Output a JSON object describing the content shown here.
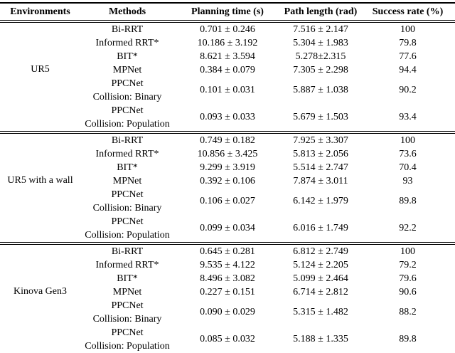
{
  "table": {
    "headers": [
      {
        "id": "environments",
        "label": "Environments"
      },
      {
        "id": "methods",
        "label": "Methods"
      },
      {
        "id": "planning_time",
        "label": "Planning time (s)"
      },
      {
        "id": "path_length",
        "label": "Path length (rad)"
      },
      {
        "id": "success_rate",
        "label": "Success rate (%)"
      }
    ],
    "sections": [
      {
        "environment": "UR5",
        "rows": [
          {
            "method": [
              "Bi-RRT"
            ],
            "planning_time": "0.701 ± 0.246",
            "path_length": "7.516 ± 2.147",
            "success_rate": "100"
          },
          {
            "method": [
              "Informed RRT*"
            ],
            "planning_time": "10.186 ± 3.192",
            "path_length": "5.304 ± 1.983",
            "success_rate": "79.8"
          },
          {
            "method": [
              "BIT*"
            ],
            "planning_time": "8.621 ± 3.594",
            "path_length": "5.278±2.315",
            "success_rate": "77.6"
          },
          {
            "method": [
              "MPNet"
            ],
            "planning_time": "0.384 ± 0.079",
            "path_length": "7.305 ± 2.298",
            "success_rate": "94.4"
          },
          {
            "method": [
              "PPCNet",
              "Collision: Binary"
            ],
            "planning_time": "0.101 ± 0.031",
            "path_length": "5.887 ± 1.038",
            "success_rate": "90.2"
          },
          {
            "method": [
              "PPCNet",
              "Collision: Population"
            ],
            "planning_time": "0.093 ± 0.033",
            "path_length": "5.679 ± 1.503",
            "success_rate": "93.4"
          }
        ]
      },
      {
        "environment": "UR5 with a wall",
        "rows": [
          {
            "method": [
              "Bi-RRT"
            ],
            "planning_time": "0.749 ± 0.182",
            "path_length": "7.925 ± 3.307",
            "success_rate": "100"
          },
          {
            "method": [
              "Informed RRT*"
            ],
            "planning_time": "10.856 ± 3.425",
            "path_length": "5.813 ± 2.056",
            "success_rate": "73.6"
          },
          {
            "method": [
              "BIT*"
            ],
            "planning_time": "9.299 ± 3.919",
            "path_length": "5.514 ± 2.747",
            "success_rate": "70.4"
          },
          {
            "method": [
              "MPNet"
            ],
            "planning_time": "0.392 ± 0.106",
            "path_length": "7.874 ± 3.011",
            "success_rate": "93"
          },
          {
            "method": [
              "PPCNet",
              "Collision: Binary"
            ],
            "planning_time": "0.106 ± 0.027",
            "path_length": "6.142 ± 1.979",
            "success_rate": "89.8"
          },
          {
            "method": [
              "PPCNet",
              "Collision: Population"
            ],
            "planning_time": "0.099 ± 0.034",
            "path_length": "6.016 ± 1.749",
            "success_rate": "92.2"
          }
        ]
      },
      {
        "environment": "Kinova Gen3",
        "rows": [
          {
            "method": [
              "Bi-RRT"
            ],
            "planning_time": "0.645 ± 0.281",
            "path_length": "6.812 ± 2.749",
            "success_rate": "100"
          },
          {
            "method": [
              "Informed RRT*"
            ],
            "planning_time": "9.535 ± 4.122",
            "path_length": "5.124 ± 2.205",
            "success_rate": "79.2"
          },
          {
            "method": [
              "BIT*"
            ],
            "planning_time": "8.496 ± 3.082",
            "path_length": "5.099 ± 2.464",
            "success_rate": "79.6"
          },
          {
            "method": [
              "MPNet"
            ],
            "planning_time": "0.227 ± 0.151",
            "path_length": "6.714 ± 2.812",
            "success_rate": "90.6"
          },
          {
            "method": [
              "PPCNet",
              "Collision: Binary"
            ],
            "planning_time": "0.090 ± 0.029",
            "path_length": "5.315 ± 1.482",
            "success_rate": "88.2"
          },
          {
            "method": [
              "PPCNet",
              "Collision: Population"
            ],
            "planning_time": "0.085 ± 0.032",
            "path_length": "5.188 ± 1.335",
            "success_rate": "89.8"
          }
        ]
      }
    ]
  },
  "chart_data": {
    "type": "table",
    "title": "",
    "columns": [
      "Environments",
      "Methods",
      "Planning time (s)",
      "Path length (rad)",
      "Success rate (%)"
    ],
    "rows": [
      [
        "UR5",
        "Bi-RRT",
        "0.701 ± 0.246",
        "7.516 ± 2.147",
        "100"
      ],
      [
        "UR5",
        "Informed RRT*",
        "10.186 ± 3.192",
        "5.304 ± 1.983",
        "79.8"
      ],
      [
        "UR5",
        "BIT*",
        "8.621 ± 3.594",
        "5.278±2.315",
        "77.6"
      ],
      [
        "UR5",
        "MPNet",
        "0.384 ± 0.079",
        "7.305 ± 2.298",
        "94.4"
      ],
      [
        "UR5",
        "PPCNet Collision: Binary",
        "0.101 ± 0.031",
        "5.887 ± 1.038",
        "90.2"
      ],
      [
        "UR5",
        "PPCNet Collision: Population",
        "0.093 ± 0.033",
        "5.679 ± 1.503",
        "93.4"
      ],
      [
        "UR5 with a wall",
        "Bi-RRT",
        "0.749 ± 0.182",
        "7.925 ± 3.307",
        "100"
      ],
      [
        "UR5 with a wall",
        "Informed RRT*",
        "10.856 ± 3.425",
        "5.813 ± 2.056",
        "73.6"
      ],
      [
        "UR5 with a wall",
        "BIT*",
        "9.299 ± 3.919",
        "5.514 ± 2.747",
        "70.4"
      ],
      [
        "UR5 with a wall",
        "MPNet",
        "0.392 ± 0.106",
        "7.874 ± 3.011",
        "93"
      ],
      [
        "UR5 with a wall",
        "PPCNet Collision: Binary",
        "0.106 ± 0.027",
        "6.142 ± 1.979",
        "89.8"
      ],
      [
        "UR5 with a wall",
        "PPCNet Collision: Population",
        "0.099 ± 0.034",
        "6.016 ± 1.749",
        "92.2"
      ],
      [
        "Kinova Gen3",
        "Bi-RRT",
        "0.645 ± 0.281",
        "6.812 ± 2.749",
        "100"
      ],
      [
        "Kinova Gen3",
        "Informed RRT*",
        "9.535 ± 4.122",
        "5.124 ± 2.205",
        "79.2"
      ],
      [
        "Kinova Gen3",
        "BIT*",
        "8.496 ± 3.082",
        "5.099 ± 2.464",
        "79.6"
      ],
      [
        "Kinova Gen3",
        "MPNet",
        "0.227 ± 0.151",
        "6.714 ± 2.812",
        "90.6"
      ],
      [
        "Kinova Gen3",
        "PPCNet Collision: Binary",
        "0.090 ± 0.029",
        "5.315 ± 1.482",
        "88.2"
      ],
      [
        "Kinova Gen3",
        "PPCNet Collision: Population",
        "0.085 ± 0.032",
        "5.188 ± 1.335",
        "89.8"
      ]
    ]
  }
}
